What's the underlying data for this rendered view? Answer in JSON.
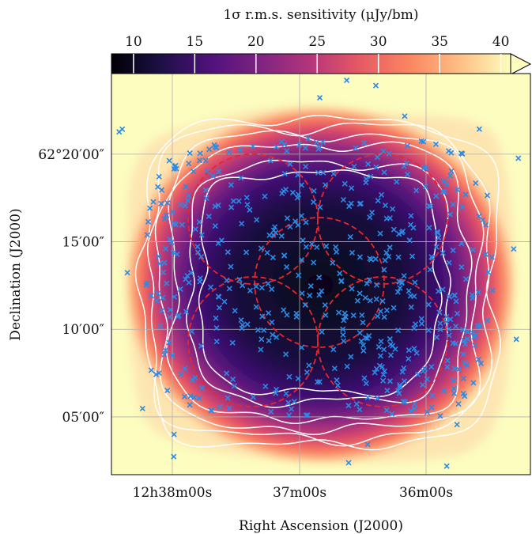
{
  "chart_data": {
    "type": "heatmap",
    "title": "",
    "colorbar": {
      "label": "1σ r.m.s. sensitivity (μJy/bm)",
      "ticks": [
        "10",
        "15",
        "20",
        "25",
        "30",
        "35",
        "40"
      ],
      "tick_values": [
        10,
        15,
        20,
        25,
        30,
        35,
        40
      ],
      "range": [
        8.2,
        40.8
      ],
      "extend": "max",
      "colormap": "magma"
    },
    "xlabel": "Right Ascension (J2000)",
    "ylabel": "Declination (J2000)",
    "x_ticks": [
      "12h38m00s",
      "37m00s",
      "36m00s"
    ],
    "y_ticks": [
      "62°20′00″",
      "15′00″",
      "10′00″",
      "05′00″"
    ],
    "y_tick_values_arcmin": [
      20,
      15,
      10,
      5
    ],
    "ylim_arcmin": [
      1.7,
      24.6
    ],
    "grid": true,
    "series": [
      {
        "name": "",
        "kind": "contours",
        "color": "#ffffff",
        "levels": [
          15,
          20,
          25,
          30,
          35,
          40
        ]
      },
      {
        "name": "",
        "kind": "pointing circles",
        "color": "#e8262b",
        "count": 5
      },
      {
        "name": "",
        "kind": "sources",
        "color": "#2a8be6",
        "marker": "x"
      }
    ]
  }
}
